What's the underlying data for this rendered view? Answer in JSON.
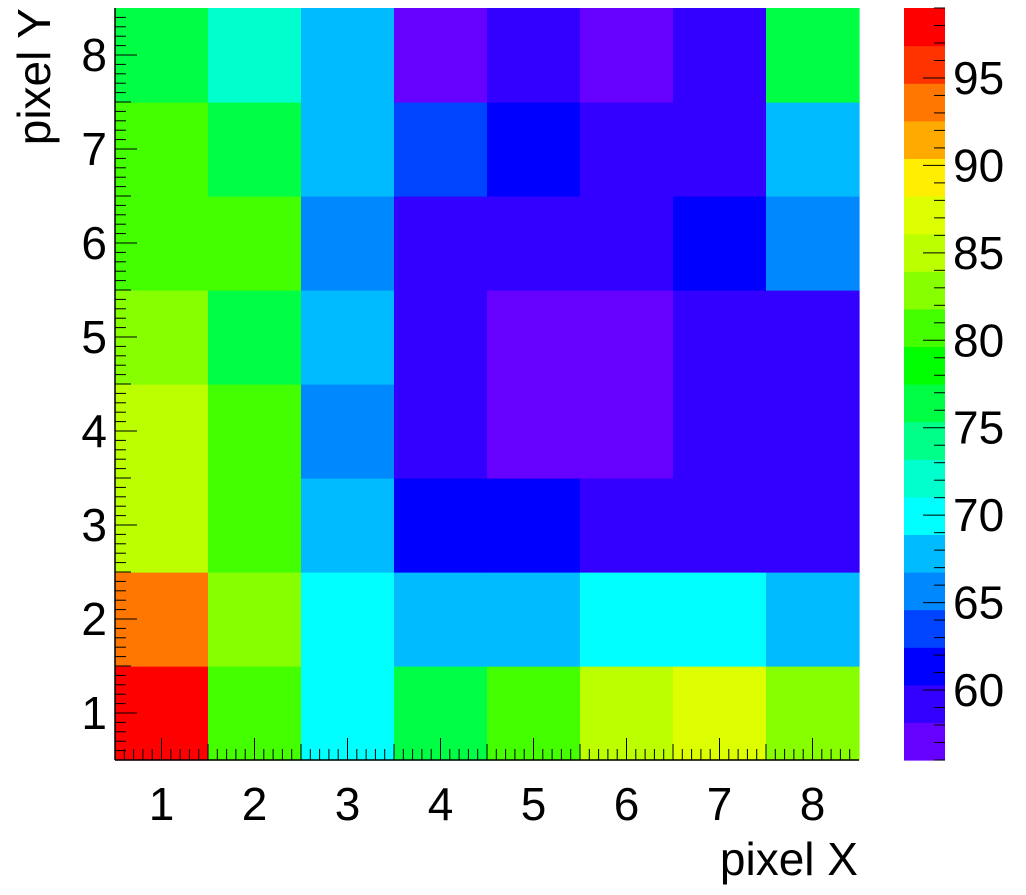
{
  "chart_data": {
    "type": "heatmap",
    "xlabel": "pixel X",
    "ylabel": "pixel Y",
    "x": [
      1,
      2,
      3,
      4,
      5,
      6,
      7,
      8
    ],
    "y": [
      1,
      2,
      3,
      4,
      5,
      6,
      7,
      8
    ],
    "xlim": [
      0.5,
      8.5
    ],
    "ylim": [
      0.5,
      8.5
    ],
    "x_ticks": [
      "1",
      "2",
      "3",
      "4",
      "5",
      "6",
      "7",
      "8"
    ],
    "y_ticks": [
      "1",
      "2",
      "3",
      "4",
      "5",
      "6",
      "7",
      "8"
    ],
    "z": [
      [
        98,
        80,
        71,
        77,
        80,
        84,
        88,
        83
      ],
      [
        93,
        82,
        70,
        68,
        68,
        70,
        70,
        68
      ],
      [
        85,
        80,
        68,
        61,
        61,
        59,
        59,
        59
      ],
      [
        85,
        80,
        65,
        59,
        57,
        57,
        59,
        59
      ],
      [
        82,
        77,
        68,
        59,
        57,
        57,
        59,
        59
      ],
      [
        80,
        80,
        65,
        59,
        59,
        59,
        61,
        66
      ],
      [
        80,
        76,
        68,
        63,
        61,
        59,
        59,
        68
      ],
      [
        77,
        73,
        68,
        57,
        59,
        57,
        59,
        77
      ]
    ],
    "z_range": [
      56,
      99
    ],
    "colorbar": {
      "ticks": [
        "60",
        "65",
        "70",
        "75",
        "80",
        "85",
        "90",
        "95"
      ],
      "minor_step": 1,
      "bins": 20
    },
    "colormap": [
      "#6600ff",
      "#3300ff",
      "#0000ff",
      "#0044ff",
      "#0088ff",
      "#00bbff",
      "#00ffff",
      "#00ffcc",
      "#00ff88",
      "#00ff44",
      "#00ff00",
      "#44ff00",
      "#88ff00",
      "#bbff00",
      "#ddff00",
      "#ffee00",
      "#ffaa00",
      "#ff7700",
      "#ff3300",
      "#ff0000"
    ],
    "grid": false,
    "legend": "none"
  }
}
